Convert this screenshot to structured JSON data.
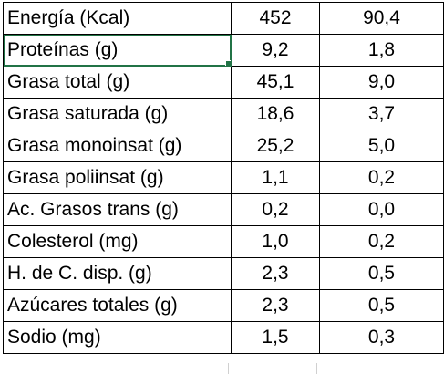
{
  "table": {
    "rows": [
      {
        "name": "Energía (Kcal)",
        "v1": "452",
        "v2": "90,4"
      },
      {
        "name": "Proteínas (g)",
        "v1": "9,2",
        "v2": "1,8"
      },
      {
        "name": "Grasa total (g)",
        "v1": "45,1",
        "v2": "9,0"
      },
      {
        "name": "Grasa saturada (g)",
        "v1": "18,6",
        "v2": "3,7"
      },
      {
        "name": "Grasa monoinsat (g)",
        "v1": "25,2",
        "v2": "5,0"
      },
      {
        "name": "Grasa poliinsat (g)",
        "v1": "1,1",
        "v2": "0,2"
      },
      {
        "name": "Ac. Grasos trans (g)",
        "v1": "0,2",
        "v2": "0,0"
      },
      {
        "name": "Colesterol (mg)",
        "v1": "1,0",
        "v2": "0,2"
      },
      {
        "name": "H. de C. disp. (g)",
        "v1": "2,3",
        "v2": "0,5"
      },
      {
        "name": "Azúcares totales (g)",
        "v1": "2,3",
        "v2": "0,5"
      },
      {
        "name": "Sodio (mg)",
        "v1": "1,5",
        "v2": "0,3"
      }
    ]
  },
  "selection": {
    "accent_color": "#217346",
    "selected_cell": "Proteínas (g)"
  }
}
